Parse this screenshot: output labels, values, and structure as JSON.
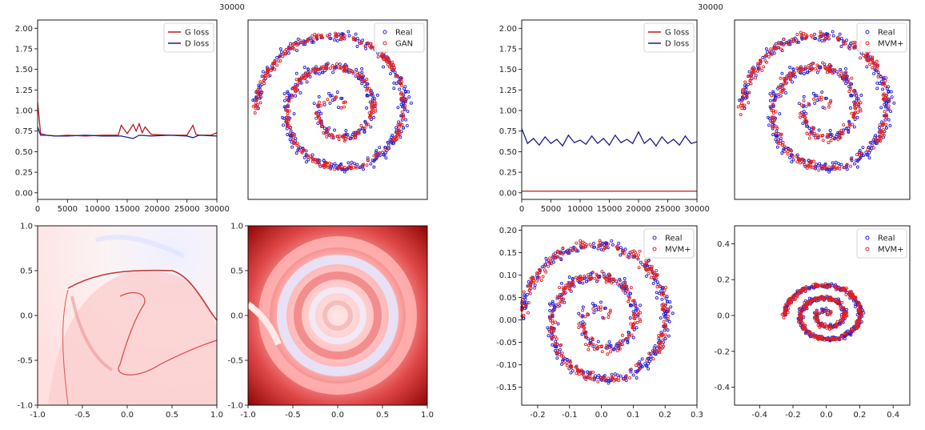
{
  "top_labels": [
    "30000",
    "30000"
  ],
  "chart_data": [
    {
      "id": "A1",
      "type": "line",
      "xlim": [
        0,
        30000
      ],
      "ylim": [
        -0.08,
        2.1
      ],
      "x_ticks": [
        "0",
        "5000",
        "10000",
        "15000",
        "20000",
        "25000",
        "30000"
      ],
      "y_ticks": [
        "0.00",
        "0.25",
        "0.50",
        "0.75",
        "1.00",
        "1.25",
        "1.50",
        "1.75",
        "2.00"
      ],
      "legend_position": "top-right",
      "series": [
        {
          "name": "G loss",
          "color": "#b81b1b",
          "x": [
            0,
            500,
            1500,
            3000,
            5000,
            8000,
            11000,
            13500,
            14000,
            15000,
            16000,
            16500,
            17000,
            17500,
            18000,
            19000,
            22000,
            25000,
            26000,
            26500,
            27000,
            29000,
            30000
          ],
          "y": [
            1.1,
            0.72,
            0.7,
            0.69,
            0.7,
            0.69,
            0.7,
            0.7,
            0.82,
            0.72,
            0.83,
            0.75,
            0.84,
            0.73,
            0.8,
            0.71,
            0.7,
            0.7,
            0.82,
            0.71,
            0.7,
            0.7,
            0.73
          ]
        },
        {
          "name": "D loss",
          "color": "#1a1a8c",
          "x": [
            0,
            500,
            1500,
            3000,
            5000,
            8000,
            11000,
            14000,
            16000,
            17000,
            19000,
            22000,
            25000,
            26000,
            27000,
            30000
          ],
          "y": [
            0.8,
            0.7,
            0.7,
            0.69,
            0.69,
            0.7,
            0.69,
            0.69,
            0.66,
            0.7,
            0.69,
            0.7,
            0.69,
            0.67,
            0.7,
            0.69
          ]
        }
      ]
    },
    {
      "id": "A2",
      "type": "scatter",
      "xlim": [
        -1.1,
        1.1
      ],
      "ylim": [
        -1.1,
        1.1
      ],
      "legend_position": "top-right",
      "axes_hidden": true,
      "series": [
        {
          "name": "Real",
          "color": "#1f1fd6",
          "spiral": {
            "turns": 2.5,
            "r0": 0.05,
            "r1": 1.0,
            "spread": 0.035,
            "n": 420
          }
        },
        {
          "name": "GAN",
          "color": "#e02020",
          "spiral": {
            "turns": 2.5,
            "r0": 0.05,
            "r1": 1.0,
            "spread": 0.02,
            "n": 420
          }
        }
      ]
    },
    {
      "id": "A3",
      "type": "heatmap",
      "colormap": "bwr",
      "xlim": [
        -1.0,
        1.0
      ],
      "ylim": [
        -1.0,
        1.0
      ],
      "x_ticks": [
        "-1.0",
        "-0.5",
        "0.0",
        "0.5",
        "1.0"
      ],
      "y_ticks": [
        "-1.0",
        "-0.5",
        "0.0",
        "0.5",
        "1.0"
      ]
    },
    {
      "id": "A4",
      "type": "heatmap",
      "colormap": "bwr",
      "xlim": [
        -1.0,
        1.0
      ],
      "ylim": [
        -1.0,
        1.0
      ],
      "x_ticks": [
        "-1.0",
        "-0.5",
        "0.0",
        "0.5",
        "1.0"
      ],
      "y_ticks": [
        "-1.0",
        "-0.5",
        "0.0",
        "0.5",
        "1.0"
      ]
    },
    {
      "id": "B1",
      "type": "line",
      "xlim": [
        0,
        30000
      ],
      "ylim": [
        -0.08,
        2.1
      ],
      "x_ticks": [
        "0",
        "5000",
        "10000",
        "15000",
        "20000",
        "25000",
        "30000"
      ],
      "y_ticks": [
        "0.00",
        "0.25",
        "0.50",
        "0.75",
        "1.00",
        "1.25",
        "1.50",
        "1.75",
        "2.00"
      ],
      "legend_position": "top-right",
      "series": [
        {
          "name": "G loss",
          "color": "#b81b1b",
          "x": [
            0,
            5000,
            10000,
            15000,
            20000,
            25000,
            30000
          ],
          "y": [
            0.02,
            0.02,
            0.02,
            0.02,
            0.02,
            0.02,
            0.02
          ]
        },
        {
          "name": "D loss",
          "color": "#1a1a8c",
          "x": [
            0,
            1000,
            2000,
            3000,
            4000,
            5000,
            6000,
            7000,
            8000,
            9000,
            10000,
            11000,
            12000,
            13000,
            14000,
            15000,
            16000,
            17000,
            18000,
            19000,
            20000,
            21000,
            22000,
            23000,
            24000,
            25000,
            26000,
            27000,
            28000,
            29000,
            30000
          ],
          "y": [
            0.78,
            0.6,
            0.66,
            0.58,
            0.68,
            0.6,
            0.65,
            0.57,
            0.7,
            0.61,
            0.64,
            0.59,
            0.69,
            0.6,
            0.66,
            0.58,
            0.7,
            0.61,
            0.65,
            0.6,
            0.74,
            0.6,
            0.66,
            0.57,
            0.68,
            0.6,
            0.65,
            0.58,
            0.69,
            0.6,
            0.62
          ]
        }
      ]
    },
    {
      "id": "B2",
      "type": "scatter",
      "xlim": [
        -1.1,
        1.1
      ],
      "ylim": [
        -1.1,
        1.1
      ],
      "legend_position": "top-right",
      "axes_hidden": true,
      "series": [
        {
          "name": "Real",
          "color": "#1f1fd6",
          "spiral": {
            "turns": 2.5,
            "r0": 0.05,
            "r1": 1.0,
            "spread": 0.035,
            "n": 420
          }
        },
        {
          "name": "MVM+",
          "color": "#e02020",
          "spiral": {
            "turns": 2.5,
            "r0": 0.05,
            "r1": 1.0,
            "spread": 0.03,
            "n": 420
          }
        }
      ]
    },
    {
      "id": "B3",
      "type": "scatter",
      "xlim": [
        -0.25,
        0.3
      ],
      "ylim": [
        -0.19,
        0.21
      ],
      "x_ticks": [
        "-0.2",
        "-0.1",
        "0.0",
        "0.1",
        "0.2",
        "0.3"
      ],
      "x_tick_values": [
        -0.2,
        -0.1,
        0.0,
        0.1,
        0.2,
        0.3
      ],
      "y_ticks": [
        "-0.15",
        "-0.10",
        "-0.05",
        "0.00",
        "0.05",
        "0.10",
        "0.15",
        "0.20"
      ],
      "y_tick_values": [
        -0.15,
        -0.1,
        -0.05,
        0.0,
        0.05,
        0.1,
        0.15,
        0.2
      ],
      "legend_position": "top-right",
      "series": [
        {
          "name": "Real",
          "color": "#1f1fd6",
          "spiral": {
            "turns": 2.5,
            "r0": 0.01,
            "r1": 0.185,
            "cx": 0.0,
            "cy": 0.0,
            "sx": 1.35,
            "sy": 1.0,
            "spread": 0.006,
            "n": 420
          }
        },
        {
          "name": "MVM+",
          "color": "#e02020",
          "spiral": {
            "turns": 2.5,
            "r0": 0.01,
            "r1": 0.185,
            "cx": 0.0,
            "cy": 0.0,
            "sx": 1.35,
            "sy": 1.0,
            "spread": 0.006,
            "n": 420
          }
        }
      ]
    },
    {
      "id": "B4",
      "type": "scatter",
      "xlim": [
        -0.55,
        0.5
      ],
      "ylim": [
        -0.5,
        0.5
      ],
      "x_ticks": [
        "-0.4",
        "-0.2",
        "0.0",
        "0.2",
        "0.4"
      ],
      "x_tick_values": [
        -0.4,
        -0.2,
        0.0,
        0.2,
        0.4
      ],
      "y_ticks": [
        "-0.4",
        "-0.2",
        "0.0",
        "0.2",
        "0.4"
      ],
      "y_tick_values": [
        -0.4,
        -0.2,
        0.0,
        0.2,
        0.4
      ],
      "legend_position": "top-right",
      "series": [
        {
          "name": "Real",
          "color": "#1f1fd6",
          "spiral": {
            "turns": 2.5,
            "r0": 0.01,
            "r1": 0.185,
            "cx": 0.0,
            "cy": 0.0,
            "sx": 1.35,
            "sy": 1.0,
            "spread": 0.006,
            "n": 380
          }
        },
        {
          "name": "MVM+",
          "color": "#e02020",
          "spiral": {
            "turns": 2.5,
            "r0": 0.01,
            "r1": 0.185,
            "cx": 0.0,
            "cy": 0.0,
            "sx": 1.35,
            "sy": 1.0,
            "spread": 0.006,
            "n": 380
          }
        }
      ]
    }
  ]
}
